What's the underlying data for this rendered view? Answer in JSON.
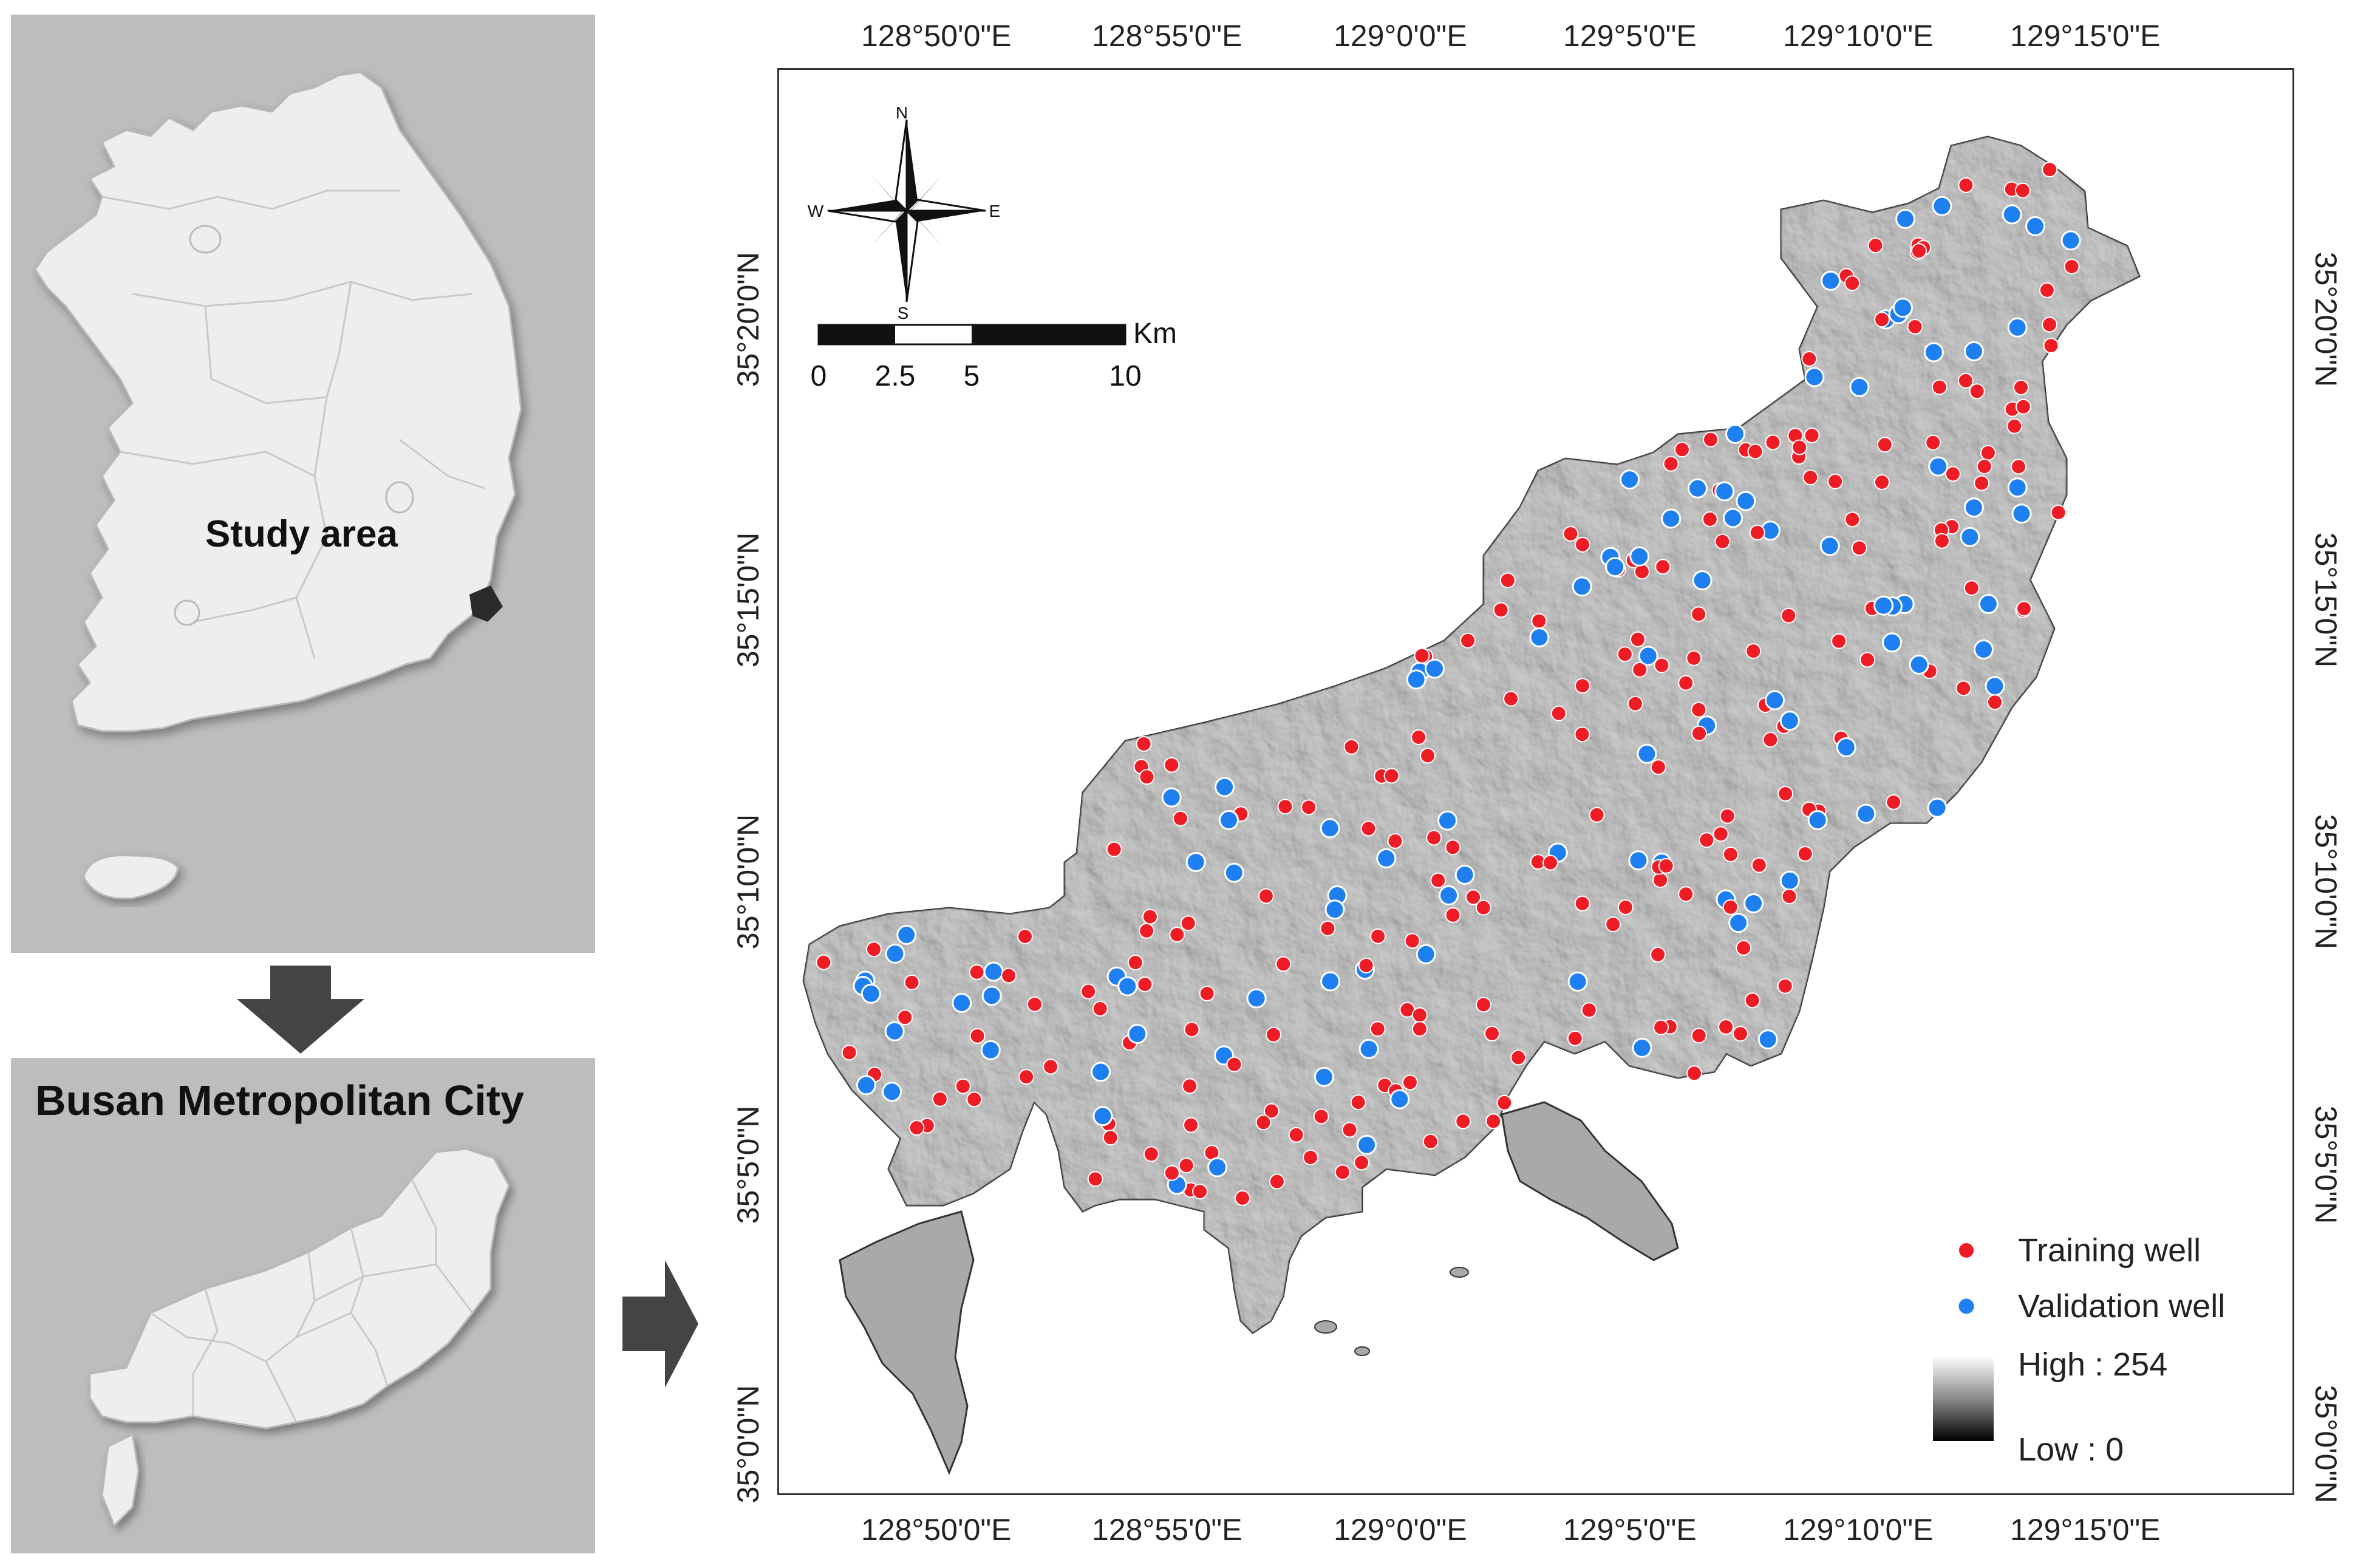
{
  "inset_korea": {
    "label": "Study area"
  },
  "inset_busan": {
    "label": "Busan Metropolitan City"
  },
  "map": {
    "top_ticks": [
      "128°50'0\"E",
      "128°55'0\"E",
      "129°0'0\"E",
      "129°5'0\"E",
      "129°10'0\"E",
      "129°15'0\"E"
    ],
    "bottom_ticks": [
      "128°50'0\"E",
      "128°55'0\"E",
      "129°0'0\"E",
      "129°5'0\"E",
      "129°10'0\"E",
      "129°15'0\"E"
    ],
    "left_ticks": [
      "35°20'0\"N",
      "35°15'0\"N",
      "35°10'0\"N",
      "35°5'0\"N",
      "35°0'0\"N"
    ],
    "right_ticks": [
      "35°20'0\"N",
      "35°15'0\"N",
      "35°10'0\"N",
      "35°5'0\"N",
      "35°0'0\"N"
    ],
    "compass": {
      "n": "N",
      "s": "S",
      "e": "E",
      "w": "W"
    },
    "scale": {
      "unit": "Km",
      "labels": [
        "0",
        "2.5",
        "5",
        "10"
      ]
    },
    "legend": {
      "training": "Training well",
      "validation": "Validation well",
      "high": "High : 254",
      "low": "Low : 0",
      "training_color": "#ee1c25",
      "validation_color": "#1e7ff0"
    }
  }
}
